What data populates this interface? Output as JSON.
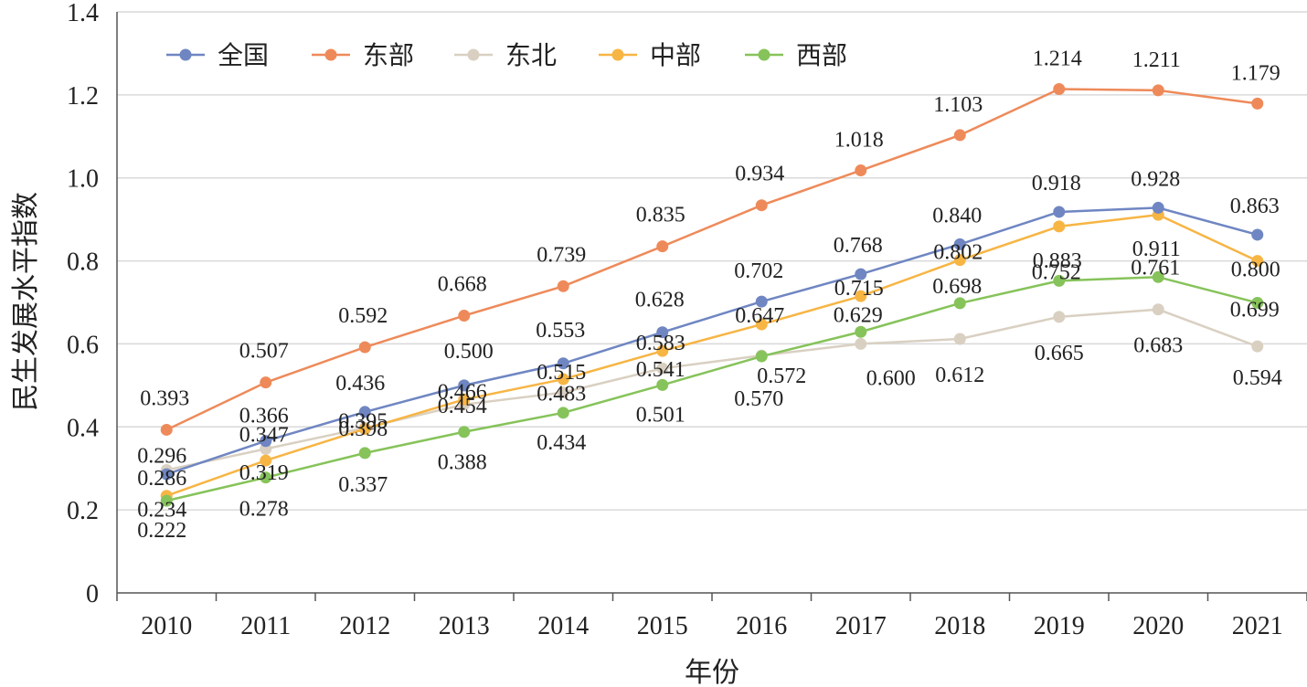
{
  "chart_data": {
    "type": "line",
    "title": "",
    "xlabel": "年份",
    "ylabel": "民生发展水平指数",
    "x": [
      "2010",
      "2011",
      "2012",
      "2013",
      "2014",
      "2015",
      "2016",
      "2017",
      "2018",
      "2019",
      "2020",
      "2021"
    ],
    "ylim": [
      0,
      1.4
    ],
    "yticks": [
      "0",
      "0.2",
      "0.4",
      "0.6",
      "0.8",
      "1.0",
      "1.2",
      "1.4"
    ],
    "grid": true,
    "legend_position": "top-left",
    "series": [
      {
        "name": "全国",
        "color": "#6f86c2",
        "values": [
          0.286,
          0.366,
          0.436,
          0.5,
          0.553,
          0.628,
          0.702,
          0.768,
          0.84,
          0.918,
          0.928,
          0.863
        ],
        "labels": [
          "0.286",
          "0.366",
          "0.436",
          "0.500",
          "0.553",
          "0.628",
          "0.702",
          "0.768",
          "0.840",
          "0.918",
          "0.928",
          "0.863"
        ]
      },
      {
        "name": "东部",
        "color": "#ee8a5a",
        "values": [
          0.393,
          0.507,
          0.592,
          0.668,
          0.739,
          0.835,
          0.934,
          1.018,
          1.103,
          1.214,
          1.211,
          1.179
        ],
        "labels": [
          "0.393",
          "0.507",
          "0.592",
          "0.668",
          "0.739",
          "0.835",
          "0.934",
          "1.018",
          "1.103",
          "1.214",
          "1.211",
          "1.179"
        ]
      },
      {
        "name": "东北",
        "color": "#d9d0c2",
        "values": [
          0.296,
          0.347,
          0.398,
          0.454,
          0.483,
          0.541,
          0.572,
          0.6,
          0.612,
          0.665,
          0.683,
          0.594
        ],
        "labels": [
          "0.296",
          "0.347",
          "0.398",
          "0.454",
          "0.483",
          "0.541",
          "0.572",
          "0.600",
          "0.612",
          "0.665",
          "0.683",
          "0.594"
        ]
      },
      {
        "name": "中部",
        "color": "#f7b544",
        "values": [
          0.234,
          0.319,
          0.395,
          0.466,
          0.515,
          0.583,
          0.647,
          0.715,
          0.802,
          0.883,
          0.911,
          0.8
        ],
        "labels": [
          "0.234",
          "0.319",
          "0.395",
          "0.466",
          "0.515",
          "0.583",
          "0.647",
          "0.715",
          "0.802",
          "0.883",
          "0.911",
          "0.800"
        ]
      },
      {
        "name": "西部",
        "color": "#86c35a",
        "values": [
          0.222,
          0.278,
          0.337,
          0.388,
          0.434,
          0.501,
          0.57,
          0.629,
          0.698,
          0.752,
          0.761,
          0.699
        ],
        "labels": [
          "0.222",
          "0.278",
          "0.337",
          "0.388",
          "0.434",
          "0.501",
          "0.570",
          "0.629",
          "0.698",
          "0.752",
          "0.761",
          "0.699"
        ]
      }
    ]
  }
}
